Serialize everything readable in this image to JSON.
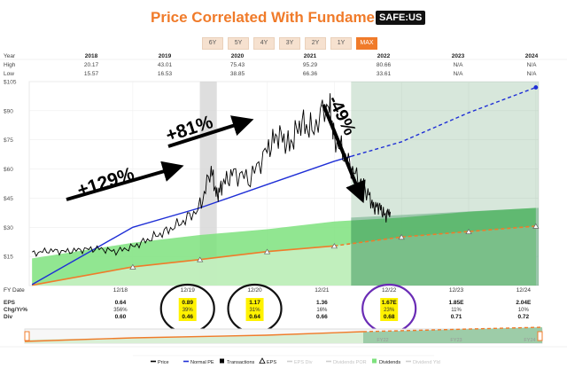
{
  "header": {
    "title": "Price Correlated With Fundamentals",
    "ticker": "SAFE:US"
  },
  "ranges": [
    "6Y",
    "5Y",
    "4Y",
    "3Y",
    "2Y",
    "1Y",
    "MAX"
  ],
  "active_range": "MAX",
  "colors": {
    "title": "#f07b2a",
    "price": "#000000",
    "normal_pe": "#1f2fd6",
    "eps_line": "#f07b2a",
    "dividends": "#7ee27e",
    "highlight": "#fff200",
    "ring_purple": "#6a2cb5"
  },
  "summary": {
    "year_label": "Year",
    "high_label": "High",
    "low_label": "Low",
    "years": [
      "2018",
      "2019",
      "2020",
      "2021",
      "2022",
      "2023",
      "2024"
    ],
    "high": [
      "20.17",
      "43.01",
      "75.43",
      "95.29",
      "80.66",
      "N/A",
      "N/A"
    ],
    "low": [
      "15.57",
      "16.53",
      "38.85",
      "66.36",
      "33.61",
      "N/A",
      "N/A"
    ]
  },
  "annotations": [
    "+129%",
    "+81%",
    "-49%"
  ],
  "fundamentals": {
    "labels": [
      "FY Date",
      "EPS",
      "Chg/Yr%",
      "Div"
    ],
    "dates": [
      "12/18",
      "12/19",
      "12/20",
      "12/21",
      "12/22",
      "12/23",
      "12/24"
    ],
    "eps": [
      "0.64",
      "0.89",
      "1.17",
      "1.36",
      "1.67E",
      "1.85E",
      "2.04E"
    ],
    "chg": [
      "356%",
      "39%",
      "31%",
      "16%",
      "23%",
      "11%",
      "10%"
    ],
    "div": [
      "0.60",
      "0.46",
      "0.64",
      "0.66",
      "0.68",
      "0.71",
      "0.72"
    ]
  },
  "mini_labels": [
    "FY22",
    "FY23",
    "FY24"
  ],
  "legend": [
    {
      "label": "Price",
      "icon": "line-icon",
      "color": "#000000"
    },
    {
      "label": "Normal PE",
      "icon": "line-icon",
      "color": "#1f2fd6"
    },
    {
      "label": "Transactions",
      "icon": "square-icon",
      "color": "#000000"
    },
    {
      "label": "EPS",
      "icon": "triangle-icon",
      "color": "#000000"
    },
    {
      "label": "EPS Div",
      "icon": "line-icon",
      "color": "#cfcfcf"
    },
    {
      "label": "Dividends POR",
      "icon": "line-icon",
      "color": "#cfcfcf"
    },
    {
      "label": "Dividends",
      "icon": "square-icon",
      "color": "#7ee27e"
    },
    {
      "label": "Dividend Yld",
      "icon": "line-icon",
      "color": "#cfcfcf"
    }
  ],
  "chart_data": {
    "type": "line",
    "title": "Price Correlated With Fundamentals",
    "y_axis": {
      "ticks": [
        "$105",
        "$90",
        "$75",
        "$60",
        "$45",
        "$30",
        "$15"
      ],
      "ylim": [
        0,
        105
      ],
      "unit": "$"
    },
    "x_ticks": [
      "12/18",
      "12/19",
      "12/20",
      "12/21",
      "12/22",
      "12/23",
      "12/24"
    ],
    "shaded_period": [
      "2019-12",
      "2020-03"
    ],
    "series": [
      {
        "name": "Price",
        "points": [
          [
            "2017-06",
            16.5
          ],
          [
            "2017-09",
            18
          ],
          [
            "2017-12",
            17.5
          ],
          [
            "2018-03",
            18.5
          ],
          [
            "2018-06",
            19
          ],
          [
            "2018-09",
            17.5
          ],
          [
            "2018-12",
            20
          ],
          [
            "2019-03",
            24
          ],
          [
            "2019-06",
            28
          ],
          [
            "2019-09",
            33
          ],
          [
            "2019-12",
            40
          ],
          [
            "2020-02",
            60
          ],
          [
            "2020-03",
            46
          ],
          [
            "2020-04",
            52
          ],
          [
            "2020-06",
            58
          ],
          [
            "2020-09",
            55
          ],
          [
            "2020-12",
            70
          ],
          [
            "2021-02",
            78
          ],
          [
            "2021-04",
            72
          ],
          [
            "2021-06",
            84
          ],
          [
            "2021-08",
            80
          ],
          [
            "2021-11",
            94
          ],
          [
            "2021-12",
            76
          ],
          [
            "2022-02",
            66
          ],
          [
            "2022-04",
            56
          ],
          [
            "2022-06",
            48
          ],
          [
            "2022-07",
            40
          ],
          [
            "2022-08",
            41
          ],
          [
            "2022-09",
            36
          ],
          [
            "2022-10",
            38
          ]
        ]
      },
      {
        "name": "Normal PE",
        "points": [
          [
            "2017-06",
            0.5
          ],
          [
            "2018-12",
            30
          ],
          [
            "2019-12",
            40
          ],
          [
            "2020-12",
            52
          ],
          [
            "2021-12",
            64
          ],
          [
            "2022-12",
            74
          ],
          [
            "2023-12",
            89
          ],
          [
            "2024-12",
            102
          ]
        ],
        "estimated_from": "2022-03"
      },
      {
        "name": "EPS",
        "points": [
          [
            "2017-06",
            0.2
          ],
          [
            "2018-12",
            9.6
          ],
          [
            "2019-12",
            13.4
          ],
          [
            "2020-12",
            17.5
          ],
          [
            "2021-12",
            20.4
          ],
          [
            "2022-12",
            25
          ],
          [
            "2023-12",
            27.8
          ],
          [
            "2024-12",
            30.6
          ]
        ]
      },
      {
        "name": "Dividends",
        "points": [
          [
            "2017-06",
            14
          ],
          [
            "2018-12",
            22
          ],
          [
            "2019-12",
            26
          ],
          [
            "2020-12",
            29
          ],
          [
            "2021-12",
            33
          ],
          [
            "2022-12",
            35
          ],
          [
            "2023-12",
            38
          ],
          [
            "2024-12",
            40
          ]
        ]
      }
    ]
  }
}
